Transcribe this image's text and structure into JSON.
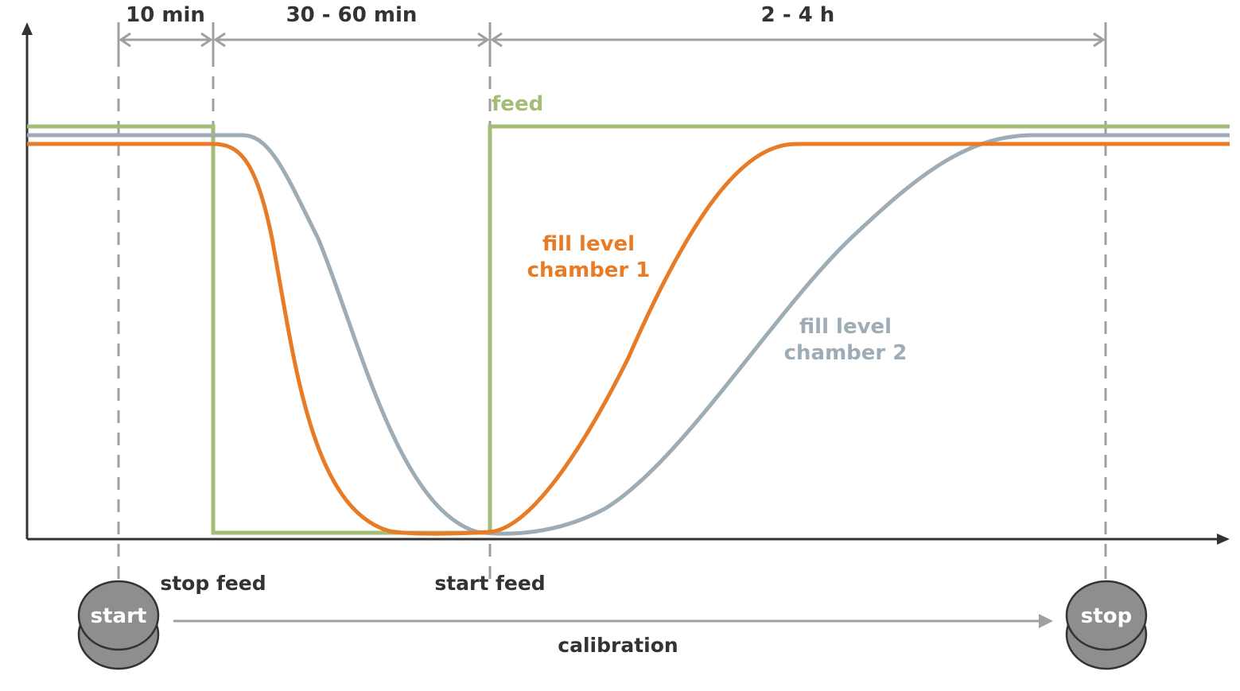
{
  "colors": {
    "feed": "#a3bd76",
    "chamber_1": "#e87c26",
    "chamber_2": "#9eacb6",
    "axis": "#333333",
    "guide": "#a0a0a0",
    "button": "#8e8e8e"
  },
  "intervals": {
    "first": "10 min",
    "second": "30 - 60 min",
    "third": "2 - 4 h"
  },
  "curves": {
    "feed": "feed",
    "chamber_1_line1": "fill level",
    "chamber_1_line2": "chamber 1",
    "chamber_2_line1": "fill level",
    "chamber_2_line2": "chamber 2"
  },
  "events": {
    "stop_feed": "stop feed",
    "start_feed": "start feed"
  },
  "buttons": {
    "start": "start",
    "stop": "stop"
  },
  "process": {
    "label": "calibration"
  }
}
